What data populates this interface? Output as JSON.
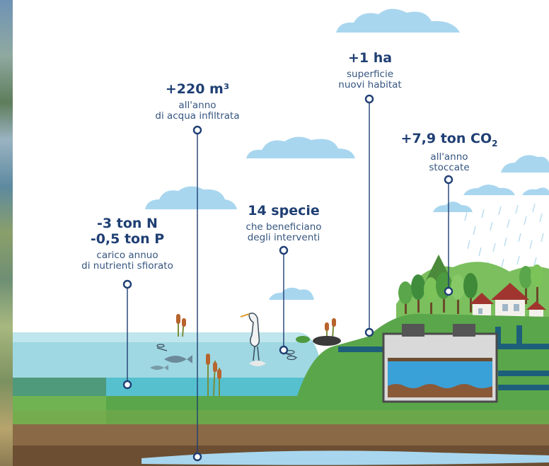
{
  "labels": {
    "nutrients": {
      "value1": "-3 ton N",
      "value2": "-0,5 ton P",
      "line1": "carico annuo",
      "line2": "di nutrienti sfiorato"
    },
    "water": {
      "value": "+220 m³",
      "line1": "all'anno",
      "line2": "di acqua infiltrata"
    },
    "species": {
      "value": "14 specie",
      "line1": "che beneficiano",
      "line2": "degli interventi"
    },
    "habitat": {
      "value": "+1 ha",
      "line1": "superficie",
      "line2": "nuovi habitat"
    },
    "carbon": {
      "value": "+7,9 ton CO",
      "subscript": "2",
      "line1": "all'anno",
      "line2": "stoccate"
    }
  },
  "colors": {
    "text_dark": "#1f3f73",
    "sky_cloud": "#a9d6ef",
    "water": "#8fd3de",
    "grass": "#5aa64a",
    "soil": "#7a5a3c",
    "tank_water": "#3aa0d8"
  },
  "icons": [
    "cloud-icon",
    "rain-icon",
    "heron-icon",
    "fish-icon",
    "dragonfly-icon",
    "reed-icon",
    "tree-icon",
    "house-icon",
    "tank-icon",
    "pipe-icon",
    "frog-icon"
  ]
}
